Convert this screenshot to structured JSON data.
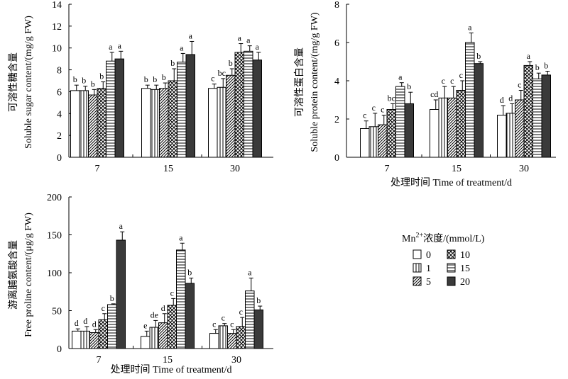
{
  "legend": {
    "title_prefix": "Mn",
    "title_sup": "2+",
    "title_suffix": "浓度/(mmol/L)",
    "items": [
      "0",
      "1",
      "5",
      "10",
      "15",
      "20"
    ]
  },
  "chart_data": [
    {
      "type": "bar",
      "ylabel_cn": "可溶性糖含量",
      "ylabel_en": "Soluble sugar content/(mg/g FW)",
      "xlabel": "",
      "ylim": [
        0,
        14
      ],
      "yticks": [
        "0",
        "2",
        "4",
        "6",
        "8",
        "10",
        "12",
        "14"
      ],
      "categories": [
        "7",
        "15",
        "30"
      ],
      "series": [
        {
          "name": "0",
          "values": [
            6.1,
            6.3,
            6.3
          ],
          "errors": [
            0.5,
            0.3,
            0.4
          ],
          "labels": [
            "b",
            "b",
            "c"
          ]
        },
        {
          "name": "1",
          "values": [
            6.1,
            6.2,
            6.4
          ],
          "errors": [
            0.4,
            0.4,
            0.8
          ],
          "labels": [
            "b",
            "b",
            "bc"
          ]
        },
        {
          "name": "5",
          "values": [
            5.7,
            6.3,
            7.5
          ],
          "errors": [
            0.5,
            0.5,
            0.6
          ],
          "labels": [
            "b",
            "b",
            "b"
          ]
        },
        {
          "name": "10",
          "values": [
            6.3,
            7.0,
            9.6
          ],
          "errors": [
            0.6,
            1.1,
            0.8
          ],
          "labels": [
            "b",
            "b",
            "a"
          ]
        },
        {
          "name": "15",
          "values": [
            8.8,
            8.7,
            9.7
          ],
          "errors": [
            0.8,
            0.8,
            0.5
          ],
          "labels": [
            "a",
            "a",
            "a"
          ]
        },
        {
          "name": "20",
          "values": [
            9.0,
            9.4,
            8.9
          ],
          "errors": [
            0.7,
            1.2,
            0.7
          ],
          "labels": [
            "a",
            "a",
            "a"
          ]
        }
      ]
    },
    {
      "type": "bar",
      "ylabel_cn": "可溶性蛋白含量",
      "ylabel_en": "Soluble protein content/(mg/g FW)",
      "xlabel": "处理时间 Time of treatment/d",
      "ylim": [
        0,
        8
      ],
      "yticks": [
        "0",
        "2",
        "4",
        "6",
        "8"
      ],
      "categories": [
        "7",
        "15",
        "30"
      ],
      "series": [
        {
          "name": "0",
          "values": [
            1.5,
            2.5,
            2.2
          ],
          "errors": [
            0.4,
            0.5,
            0.5
          ],
          "labels": [
            "c",
            "cd",
            "d"
          ]
        },
        {
          "name": "1",
          "values": [
            1.6,
            3.1,
            2.3
          ],
          "errors": [
            0.7,
            0.6,
            0.5
          ],
          "labels": [
            "c",
            "c",
            "d"
          ]
        },
        {
          "name": "5",
          "values": [
            1.7,
            3.1,
            3.0
          ],
          "errors": [
            0.5,
            0.6,
            0.5
          ],
          "labels": [
            "c",
            "c",
            "c"
          ]
        },
        {
          "name": "10",
          "values": [
            2.5,
            3.5,
            4.8
          ],
          "errors": [
            0.3,
            0.5,
            0.2
          ],
          "labels": [
            "bc",
            "c",
            "a"
          ]
        },
        {
          "name": "15",
          "values": [
            3.7,
            6.0,
            4.1
          ],
          "errors": [
            0.2,
            0.5,
            0.3
          ],
          "labels": [
            "a",
            "a",
            "b"
          ]
        },
        {
          "name": "20",
          "values": [
            2.8,
            4.9,
            4.3
          ],
          "errors": [
            0.6,
            0.1,
            0.2
          ],
          "labels": [
            "b",
            "b",
            "b"
          ]
        }
      ]
    },
    {
      "type": "bar",
      "ylabel_cn": "游离脯氨酸含量",
      "ylabel_en": "Free proline content/(μg/g FW)",
      "xlabel": "处理时间 Time of treatment/d",
      "ylim": [
        0,
        200
      ],
      "yticks": [
        "0",
        "50",
        "100",
        "150",
        "200"
      ],
      "categories": [
        "7",
        "15",
        "30"
      ],
      "series": [
        {
          "name": "0",
          "values": [
            23,
            16,
            20
          ],
          "errors": [
            3,
            7,
            5
          ],
          "labels": [
            "d",
            "e",
            "c"
          ]
        },
        {
          "name": "1",
          "values": [
            23,
            28,
            30
          ],
          "errors": [
            6,
            9,
            3
          ],
          "labels": [
            "d",
            "de",
            "c"
          ]
        },
        {
          "name": "5",
          "values": [
            21,
            34,
            20
          ],
          "errors": [
            4,
            12,
            5
          ],
          "labels": [
            "d",
            "d",
            "c"
          ]
        },
        {
          "name": "10",
          "values": [
            38,
            57,
            29
          ],
          "errors": [
            8,
            9,
            12
          ],
          "labels": [
            "c",
            "c",
            "c"
          ]
        },
        {
          "name": "15",
          "values": [
            58,
            130,
            76
          ],
          "errors": [
            1,
            9,
            17
          ],
          "labels": [
            "b",
            "a",
            "a"
          ]
        },
        {
          "name": "20",
          "values": [
            143,
            86,
            51
          ],
          "errors": [
            11,
            7,
            5
          ],
          "labels": [
            "a",
            "b",
            "b"
          ]
        }
      ]
    }
  ]
}
